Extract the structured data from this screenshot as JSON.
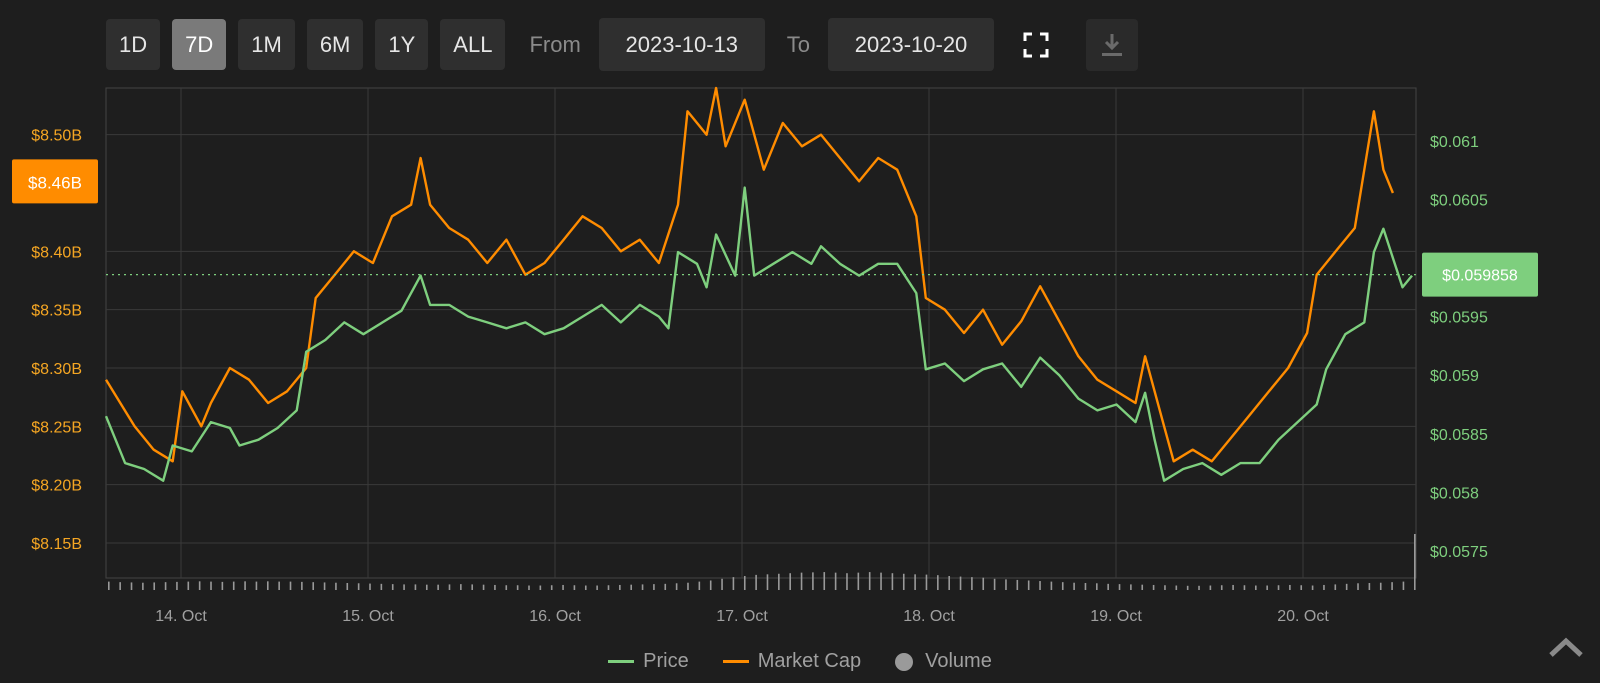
{
  "toolbar": {
    "ranges": [
      "1D",
      "7D",
      "1M",
      "6M",
      "1Y",
      "ALL"
    ],
    "active_range": "7D",
    "from_label": "From",
    "from_value": "2023-10-13",
    "to_label": "To",
    "to_value": "2023-10-20",
    "fullscreen_icon": "fullscreen-icon",
    "download_icon": "download-icon"
  },
  "legend": {
    "price": "Price",
    "market_cap": "Market Cap",
    "volume": "Volume"
  },
  "colors": {
    "price": "#7ecf7e",
    "market_cap": "#ff8c00",
    "volume": "#9a9a9a",
    "grid": "#3a3a3a",
    "left_axis_text": "#f5a623",
    "right_axis_text": "#7ecf7e"
  },
  "chart_data": {
    "type": "line",
    "x_range": [
      "2023-10-13 17:30",
      "2023-10-20 14:00"
    ],
    "x_ticks": [
      "14. Oct",
      "15. Oct",
      "16. Oct",
      "17. Oct",
      "18. Oct",
      "19. Oct",
      "20. Oct"
    ],
    "y_left": {
      "label": "",
      "range": [
        8.12,
        8.54
      ],
      "ticks": [
        "$8.15B",
        "$8.20B",
        "$8.25B",
        "$8.30B",
        "$8.35B",
        "$8.40B",
        "$8.50B"
      ],
      "highlight": "$8.46B",
      "highlight_value": 8.46
    },
    "y_right": {
      "label": "",
      "range": [
        0.05727,
        0.06145
      ],
      "ticks": [
        "$0.0575",
        "$0.058",
        "$0.0585",
        "$0.059",
        "$0.0595",
        "$0.0605",
        "$0.061"
      ],
      "current": "$0.059858",
      "current_value": 0.059858
    },
    "series": [
      {
        "name": "Market Cap",
        "axis": "left",
        "points": [
          [
            0,
            8.29
          ],
          [
            3,
            8.25
          ],
          [
            5,
            8.23
          ],
          [
            7,
            8.22
          ],
          [
            8,
            8.28
          ],
          [
            10,
            8.25
          ],
          [
            11,
            8.27
          ],
          [
            13,
            8.3
          ],
          [
            15,
            8.29
          ],
          [
            17,
            8.27
          ],
          [
            19,
            8.28
          ],
          [
            21,
            8.3
          ],
          [
            22,
            8.36
          ],
          [
            24,
            8.38
          ],
          [
            26,
            8.4
          ],
          [
            28,
            8.39
          ],
          [
            30,
            8.43
          ],
          [
            32,
            8.44
          ],
          [
            33,
            8.48
          ],
          [
            34,
            8.44
          ],
          [
            36,
            8.42
          ],
          [
            38,
            8.41
          ],
          [
            40,
            8.39
          ],
          [
            42,
            8.41
          ],
          [
            44,
            8.38
          ],
          [
            46,
            8.39
          ],
          [
            48,
            8.41
          ],
          [
            50,
            8.43
          ],
          [
            52,
            8.42
          ],
          [
            54,
            8.4
          ],
          [
            56,
            8.41
          ],
          [
            58,
            8.39
          ],
          [
            60,
            8.44
          ],
          [
            61,
            8.52
          ],
          [
            63,
            8.5
          ],
          [
            64,
            8.54
          ],
          [
            65,
            8.49
          ],
          [
            67,
            8.53
          ],
          [
            69,
            8.47
          ],
          [
            71,
            8.51
          ],
          [
            73,
            8.49
          ],
          [
            75,
            8.5
          ],
          [
            77,
            8.48
          ],
          [
            79,
            8.46
          ],
          [
            81,
            8.48
          ],
          [
            83,
            8.47
          ],
          [
            85,
            8.43
          ],
          [
            86,
            8.36
          ],
          [
            88,
            8.35
          ],
          [
            90,
            8.33
          ],
          [
            92,
            8.35
          ],
          [
            94,
            8.32
          ],
          [
            96,
            8.34
          ],
          [
            98,
            8.37
          ],
          [
            100,
            8.34
          ],
          [
            102,
            8.31
          ],
          [
            104,
            8.29
          ],
          [
            106,
            8.28
          ],
          [
            108,
            8.27
          ],
          [
            109,
            8.31
          ],
          [
            111,
            8.25
          ],
          [
            112,
            8.22
          ],
          [
            114,
            8.23
          ],
          [
            116,
            8.22
          ],
          [
            118,
            8.24
          ],
          [
            120,
            8.26
          ],
          [
            122,
            8.28
          ],
          [
            124,
            8.3
          ],
          [
            126,
            8.33
          ],
          [
            127,
            8.38
          ],
          [
            129,
            8.4
          ],
          [
            131,
            8.42
          ],
          [
            132,
            8.47
          ],
          [
            133,
            8.52
          ],
          [
            134,
            8.47
          ],
          [
            135,
            8.45
          ]
        ]
      },
      {
        "name": "Price",
        "axis": "right",
        "points": [
          [
            0,
            0.05865
          ],
          [
            2,
            0.05825
          ],
          [
            4,
            0.0582
          ],
          [
            6,
            0.0581
          ],
          [
            7,
            0.0584
          ],
          [
            9,
            0.05835
          ],
          [
            11,
            0.0586
          ],
          [
            13,
            0.05855
          ],
          [
            14,
            0.0584
          ],
          [
            16,
            0.05845
          ],
          [
            18,
            0.05855
          ],
          [
            20,
            0.0587
          ],
          [
            21,
            0.0592
          ],
          [
            23,
            0.0593
          ],
          [
            25,
            0.05945
          ],
          [
            27,
            0.05935
          ],
          [
            29,
            0.05945
          ],
          [
            31,
            0.05955
          ],
          [
            33,
            0.05985
          ],
          [
            34,
            0.0596
          ],
          [
            36,
            0.0596
          ],
          [
            38,
            0.0595
          ],
          [
            40,
            0.05945
          ],
          [
            42,
            0.0594
          ],
          [
            44,
            0.05945
          ],
          [
            46,
            0.05935
          ],
          [
            48,
            0.0594
          ],
          [
            50,
            0.0595
          ],
          [
            52,
            0.0596
          ],
          [
            54,
            0.05945
          ],
          [
            56,
            0.0596
          ],
          [
            58,
            0.0595
          ],
          [
            59,
            0.0594
          ],
          [
            60,
            0.06005
          ],
          [
            62,
            0.05995
          ],
          [
            63,
            0.05975
          ],
          [
            64,
            0.0602
          ],
          [
            66,
            0.05985
          ],
          [
            67,
            0.0606
          ],
          [
            68,
            0.05985
          ],
          [
            70,
            0.05995
          ],
          [
            72,
            0.06005
          ],
          [
            74,
            0.05995
          ],
          [
            75,
            0.0601
          ],
          [
            77,
            0.05995
          ],
          [
            79,
            0.05985
          ],
          [
            81,
            0.05995
          ],
          [
            83,
            0.05995
          ],
          [
            85,
            0.0597
          ],
          [
            86,
            0.05905
          ],
          [
            88,
            0.0591
          ],
          [
            90,
            0.05895
          ],
          [
            92,
            0.05905
          ],
          [
            94,
            0.0591
          ],
          [
            96,
            0.0589
          ],
          [
            98,
            0.05915
          ],
          [
            100,
            0.059
          ],
          [
            102,
            0.0588
          ],
          [
            104,
            0.0587
          ],
          [
            106,
            0.05875
          ],
          [
            108,
            0.0586
          ],
          [
            109,
            0.05885
          ],
          [
            110,
            0.05845
          ],
          [
            111,
            0.0581
          ],
          [
            113,
            0.0582
          ],
          [
            115,
            0.05825
          ],
          [
            117,
            0.05815
          ],
          [
            119,
            0.05825
          ],
          [
            121,
            0.05825
          ],
          [
            123,
            0.05845
          ],
          [
            125,
            0.0586
          ],
          [
            127,
            0.05875
          ],
          [
            128,
            0.05905
          ],
          [
            130,
            0.05935
          ],
          [
            132,
            0.05945
          ],
          [
            133,
            0.06005
          ],
          [
            134,
            0.06025
          ],
          [
            135,
            0.06
          ],
          [
            136,
            0.05975
          ],
          [
            137,
            0.05985
          ]
        ]
      }
    ],
    "volume": {
      "name": "Volume",
      "values": [
        0.3,
        0.28,
        0.27,
        0.26,
        0.27,
        0.28,
        0.29,
        0.3,
        0.31,
        0.3,
        0.29,
        0.3,
        0.31,
        0.3,
        0.31,
        0.3,
        0.3,
        0.29,
        0.28,
        0.27,
        0.26,
        0.25,
        0.24,
        0.23,
        0.22,
        0.21,
        0.2,
        0.2,
        0.19,
        0.19,
        0.2,
        0.21,
        0.2,
        0.19,
        0.18,
        0.17,
        0.17,
        0.16,
        0.16,
        0.17,
        0.18,
        0.17,
        0.16,
        0.16,
        0.17,
        0.18,
        0.19,
        0.2,
        0.21,
        0.22,
        0.24,
        0.26,
        0.3,
        0.34,
        0.4,
        0.46,
        0.5,
        0.54,
        0.56,
        0.58,
        0.6,
        0.62,
        0.63,
        0.64,
        0.62,
        0.6,
        0.62,
        0.64,
        0.62,
        0.6,
        0.58,
        0.56,
        0.55,
        0.53,
        0.5,
        0.48,
        0.46,
        0.44,
        0.4,
        0.38,
        0.36,
        0.34,
        0.32,
        0.3,
        0.28,
        0.26,
        0.25,
        0.24,
        0.22,
        0.21,
        0.2,
        0.19,
        0.18,
        0.17,
        0.16,
        0.15,
        0.15,
        0.16,
        0.17,
        0.18,
        0.17,
        0.16,
        0.16,
        0.17,
        0.18,
        0.17,
        0.16,
        0.18,
        0.2,
        0.22,
        0.24,
        0.25,
        0.26,
        0.28,
        0.3,
        2.0
      ]
    }
  }
}
